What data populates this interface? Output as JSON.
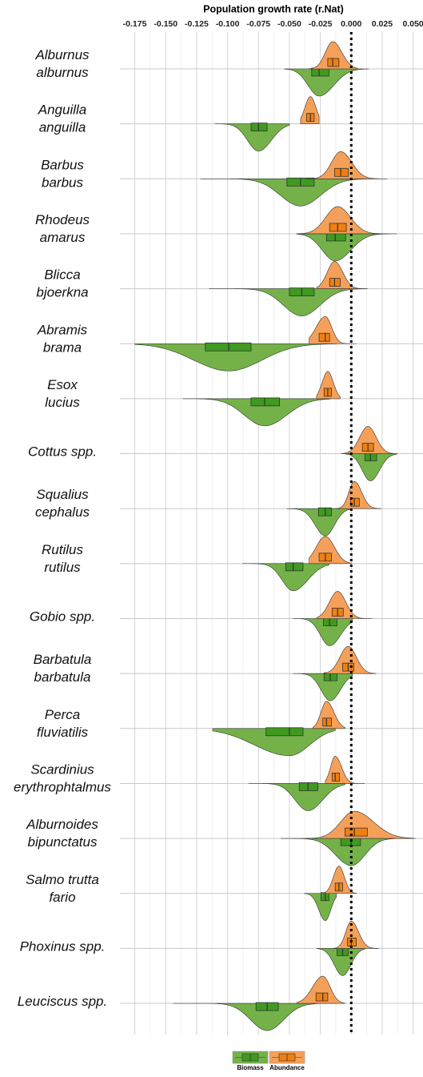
{
  "chart_data": {
    "type": "split-violin",
    "x_label": "Population growth rate (r.Nat)",
    "xlim": [
      -0.187,
      0.058
    ],
    "xticks": [
      -0.175,
      {
        "value": -0.15,
        "label": "-0.150"
      },
      -0.125,
      {
        "value": -0.1,
        "label": "-0.100"
      },
      -0.075,
      {
        "value": -0.05,
        "label": "-0.050"
      },
      -0.025,
      {
        "value": 0,
        "label": "0.000"
      },
      0.025,
      {
        "value": 0.05,
        "label": "0.050"
      }
    ],
    "grid": true,
    "vline": 0,
    "legend": "bottom",
    "categories": [
      [
        "Alburnus",
        "alburnus"
      ],
      [
        "Anguilla",
        "anguilla"
      ],
      [
        "Barbus",
        "barbus"
      ],
      [
        "Rhodeus",
        "amarus"
      ],
      [
        "Blicca",
        "bjoerkna"
      ],
      [
        "Abramis",
        "brama"
      ],
      [
        "Esox",
        "lucius"
      ],
      [
        "Cottus spp."
      ],
      [
        "Squalius",
        "cephalus"
      ],
      [
        "Rutilus",
        "rutilus"
      ],
      [
        "Gobio spp."
      ],
      [
        "Barbatula",
        "barbatula"
      ],
      [
        "Perca",
        "fluviatilis"
      ],
      [
        "Scardinius",
        "erythrophtalmus"
      ],
      [
        "Alburnoides",
        "bipunctatus"
      ],
      [
        "Salmo trutta",
        "fario"
      ],
      [
        "Phoxinus spp."
      ],
      [
        "Leuciscus spp."
      ]
    ],
    "series": [
      {
        "name": "Biomass",
        "color": "#74b249",
        "box_color": "#3f9a1f",
        "min": [
          -0.054,
          -0.11,
          -0.122,
          -0.044,
          -0.115,
          -0.175,
          -0.136,
          -0.005,
          -0.052,
          -0.088,
          -0.047,
          -0.047,
          -0.112,
          -0.083,
          -0.057,
          -0.038,
          -0.028,
          -0.144
        ],
        "q1": [
          -0.032,
          -0.081,
          -0.052,
          -0.02,
          -0.05,
          -0.118,
          -0.081,
          0.011,
          -0.0265,
          -0.053,
          -0.0225,
          -0.022,
          -0.069,
          -0.042,
          -0.0085,
          -0.0245,
          -0.0115,
          -0.077
        ],
        "median": [
          -0.026,
          -0.075,
          -0.041,
          -0.013,
          -0.04,
          -0.099,
          -0.07,
          0.0155,
          -0.021,
          -0.047,
          -0.0175,
          -0.017,
          -0.05,
          -0.035,
          0,
          -0.021,
          -0.007,
          -0.068
        ],
        "q3": [
          -0.018,
          -0.068,
          -0.03,
          -0.0045,
          -0.03,
          -0.081,
          -0.058,
          0.0205,
          -0.016,
          -0.039,
          -0.0115,
          -0.0115,
          -0.039,
          -0.027,
          0.0075,
          -0.018,
          -0.0025,
          -0.059
        ],
        "max": [
          0.014,
          -0.05,
          0.021,
          0.03,
          0.013,
          -0.012,
          -0.017,
          0.037,
          0.001,
          -0.018,
          0.001,
          0.001,
          -0.013,
          -0.005,
          0.052,
          -0.012,
          0.011,
          -0.012
        ]
      },
      {
        "name": "Abundance",
        "color": "#f5a05a",
        "box_color": "#f07f10",
        "min": [
          -0.034,
          -0.041,
          -0.037,
          -0.044,
          -0.028,
          -0.034,
          -0.028,
          -0.008,
          -0.018,
          -0.034,
          -0.028,
          -0.021,
          -0.031,
          -0.021,
          -0.037,
          -0.021,
          -0.015,
          -0.044
        ],
        "q1": [
          -0.019,
          -0.036,
          -0.0135,
          -0.0175,
          -0.0175,
          -0.026,
          -0.022,
          0.009,
          -0.0005,
          -0.026,
          -0.0155,
          -0.007,
          -0.023,
          -0.0155,
          -0.005,
          -0.013,
          -0.003,
          -0.0285
        ],
        "median": [
          -0.015,
          -0.033,
          -0.0085,
          -0.011,
          -0.0135,
          -0.021,
          -0.019,
          0.0135,
          0.0025,
          -0.021,
          -0.011,
          -0.0025,
          -0.02,
          -0.013,
          0.0025,
          -0.01,
          0,
          -0.023
        ],
        "q3": [
          -0.01,
          -0.03,
          -0.0025,
          -0.004,
          -0.009,
          -0.0175,
          -0.016,
          0.018,
          0.0065,
          -0.016,
          -0.0065,
          0.002,
          -0.016,
          -0.0095,
          0.013,
          -0.007,
          0.004,
          -0.019
        ],
        "max": [
          0.005,
          -0.026,
          0.029,
          0.037,
          0.011,
          0.004,
          -0.009,
          0.034,
          0.024,
          0,
          0.017,
          0.02,
          -0.005,
          0.011,
          0.05,
          0.004,
          0.022,
          -0.005
        ]
      }
    ]
  }
}
